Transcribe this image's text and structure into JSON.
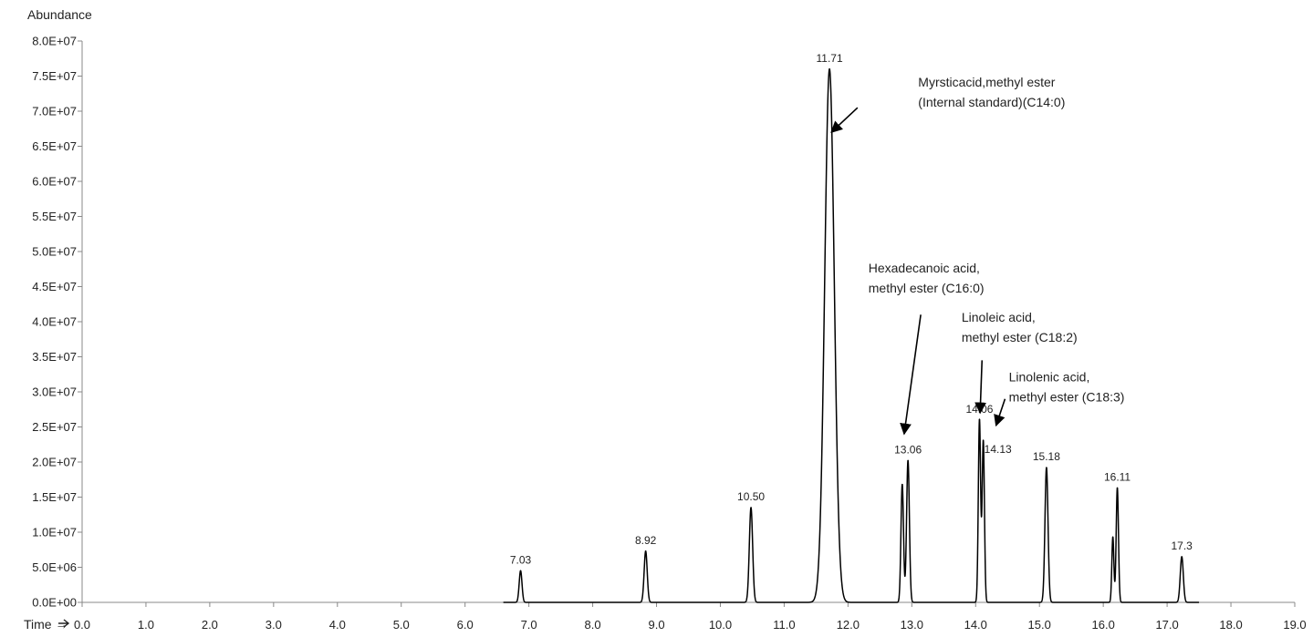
{
  "chart_data": {
    "type": "line",
    "title": "",
    "ylabel": "Abundance",
    "xlabel": "Time →",
    "xlim": [
      0,
      19
    ],
    "ylim": [
      0,
      80000000
    ],
    "grid": false,
    "legend": "none",
    "x_ticks": [
      "0.0",
      "1.0",
      "2.0",
      "3.0",
      "4.0",
      "5.0",
      "6.0",
      "7.0",
      "8.0",
      "9.0",
      "10.0",
      "11.0",
      "12.0",
      "13.0",
      "14.0",
      "15.0",
      "16.0",
      "17.0",
      "18.0",
      "19.0"
    ],
    "y_ticks": [
      "0.0E+00",
      "5.0E+06",
      "1.0E+07",
      "1.5E+07",
      "2.0E+07",
      "2.5E+07",
      "3.0E+07",
      "3.5E+07",
      "4.0E+07",
      "4.5E+07",
      "5.0E+07",
      "5.5E+07",
      "6.0E+07",
      "6.5E+07",
      "7.0E+07",
      "7.5E+07",
      "8.0E+07"
    ],
    "series": [
      {
        "peaks": [
          {
            "rt": 6.87,
            "height": 4500000,
            "width": 0.022,
            "label": "7.03"
          },
          {
            "rt": 8.83,
            "height": 7300000,
            "width": 0.024,
            "label": "8.92"
          },
          {
            "rt": 10.48,
            "height": 13500000,
            "width": 0.026,
            "label": "10.50"
          },
          {
            "rt": 11.71,
            "height": 76000000,
            "width": 0.075,
            "label": "11.71"
          },
          {
            "rt": 12.85,
            "height": 16800000,
            "width": 0.02,
            "label": ""
          },
          {
            "rt": 12.94,
            "height": 20200000,
            "width": 0.022,
            "label": "13.06"
          },
          {
            "rt": 14.06,
            "height": 26000000,
            "width": 0.018,
            "label": "14.06"
          },
          {
            "rt": 14.12,
            "height": 23000000,
            "width": 0.018,
            "label": "14.13"
          },
          {
            "rt": 15.11,
            "height": 19200000,
            "width": 0.024,
            "label": "15.18"
          },
          {
            "rt": 16.15,
            "height": 9300000,
            "width": 0.016,
            "label": ""
          },
          {
            "rt": 16.22,
            "height": 16300000,
            "width": 0.018,
            "label": "16.11"
          },
          {
            "rt": 17.23,
            "height": 6500000,
            "width": 0.024,
            "label": "17.3"
          }
        ]
      }
    ],
    "annotations": [
      {
        "lines": [
          "Myrsticacid,methyl ester",
          "(Internal standard)(C14:0)"
        ],
        "text_x": 13.1,
        "text_y": 73500000,
        "arrow_from": [
          12.15,
          70500000
        ],
        "arrow_to": [
          11.74,
          67000000
        ]
      },
      {
        "lines": [
          "Hexadecanoic acid,",
          "methyl ester (C16:0)"
        ],
        "text_x": 12.32,
        "text_y": 47000000,
        "arrow_from": [
          13.14,
          41000000
        ],
        "arrow_to": [
          12.88,
          24000000
        ]
      },
      {
        "lines": [
          "Linoleic acid,",
          "methyl ester (C18:2)"
        ],
        "text_x": 13.78,
        "text_y": 40000000,
        "arrow_from": [
          14.1,
          34500000
        ],
        "arrow_to": [
          14.07,
          27000000
        ]
      },
      {
        "lines": [
          "Linolenic acid,",
          "methyl ester (C18:3)"
        ],
        "text_x": 14.52,
        "text_y": 31500000,
        "arrow_from": [
          14.46,
          29000000
        ],
        "arrow_to": [
          14.32,
          25200000
        ]
      }
    ]
  }
}
